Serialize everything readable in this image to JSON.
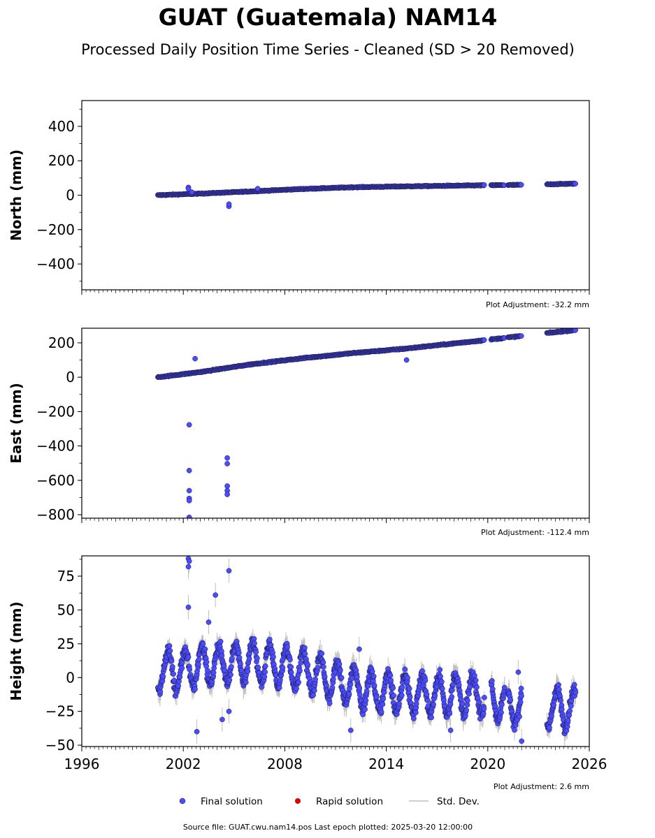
{
  "title": "GUAT (Guatemala) NAM14",
  "subtitle": "Processed Daily Position Time Series - Cleaned (SD > 20 Removed)",
  "footer": "Source file: GUAT.cwu.nam14.pos  Last epoch plotted: 2025-03-20 12:00:00",
  "legend": {
    "final": "Final solution",
    "rapid": "Rapid solution",
    "std": "Std. Dev."
  },
  "colors": {
    "final": "#4b4bff",
    "final_edge": "#1a1a40",
    "rapid": "#e00000",
    "std": "#bfbfbf"
  },
  "chart_data": [
    {
      "type": "scatter",
      "panel": "north",
      "ylabel": "North (mm)",
      "ylim": [
        -550,
        550
      ],
      "yticks": [
        -400,
        -200,
        0,
        200,
        400
      ],
      "ytick_labels": [
        "−400",
        "−200",
        "0",
        "200",
        "400"
      ],
      "xlim": [
        1996,
        2026
      ],
      "adjustment": "Plot Adjustment: -32.2 mm",
      "series": [
        {
          "name": "Final solution",
          "trend": [
            [
              2000.5,
              0
            ],
            [
              2003,
              9
            ],
            [
              2006,
              22
            ],
            [
              2009,
              36
            ],
            [
              2012,
              46
            ],
            [
              2015,
              51
            ],
            [
              2019.5,
              57
            ],
            [
              2022,
              60
            ],
            [
              2025.2,
              67
            ]
          ],
          "segments": [
            [
              2000.5,
              2019.8
            ],
            [
              2020.2,
              2021.0
            ],
            [
              2021.2,
              2022.0
            ],
            [
              2023.5,
              2025.2
            ]
          ],
          "outliers": [
            [
              2002.3,
              45
            ],
            [
              2002.3,
              38
            ],
            [
              2002.5,
              18
            ],
            [
              2004.7,
              -65
            ],
            [
              2004.7,
              -52
            ],
            [
              2006.4,
              38
            ]
          ]
        }
      ]
    },
    {
      "type": "scatter",
      "panel": "east",
      "ylabel": "East (mm)",
      "ylim": [
        -820,
        285
      ],
      "yticks": [
        -800,
        -600,
        -400,
        -200,
        0,
        200
      ],
      "ytick_labels": [
        "−800",
        "−600",
        "−400",
        "−200",
        "0",
        "200"
      ],
      "xlim": [
        1996,
        2026
      ],
      "adjustment": "Plot Adjustment: -112.4 mm",
      "series": [
        {
          "name": "Final solution",
          "trend": [
            [
              2000.5,
              0
            ],
            [
              2003,
              30
            ],
            [
              2006,
              75
            ],
            [
              2009,
              110
            ],
            [
              2012,
              140
            ],
            [
              2015,
              165
            ],
            [
              2019.5,
              212
            ],
            [
              2022,
              240
            ],
            [
              2025.2,
              275
            ]
          ],
          "segments": [
            [
              2000.5,
              2019.8
            ],
            [
              2020.2,
              2021.0
            ],
            [
              2021.2,
              2022.0
            ],
            [
              2023.5,
              2025.2
            ]
          ],
          "outliers": [
            [
              2002.35,
              -277
            ],
            [
              2002.35,
              -543
            ],
            [
              2002.35,
              -660
            ],
            [
              2002.35,
              -705
            ],
            [
              2002.35,
              -718
            ],
            [
              2002.35,
              -815
            ],
            [
              2002.7,
              108
            ],
            [
              2004.6,
              -470
            ],
            [
              2004.6,
              -503
            ],
            [
              2004.6,
              -633
            ],
            [
              2004.6,
              -660
            ],
            [
              2004.6,
              -682
            ],
            [
              2015.2,
              100
            ]
          ]
        }
      ]
    },
    {
      "type": "scatter",
      "panel": "height",
      "ylabel": "Height (mm)",
      "ylim": [
        -51,
        90
      ],
      "yticks": [
        -50,
        -25,
        0,
        25,
        50,
        75
      ],
      "ytick_labels": [
        "−50",
        "−25",
        "0",
        "25",
        "50",
        "75"
      ],
      "xlim": [
        1996,
        2026
      ],
      "xticks": [
        1996,
        2002,
        2008,
        2014,
        2020,
        2026
      ],
      "xtick_labels": [
        "1996",
        "2002",
        "2008",
        "2014",
        "2020",
        "2026"
      ],
      "adjustment": "Plot Adjustment: 2.6 mm",
      "series": [
        {
          "name": "Final solution",
          "trend": [
            [
              2000.5,
              5
            ],
            [
              2003,
              8
            ],
            [
              2006,
              12
            ],
            [
              2009,
              6
            ],
            [
              2011,
              -2
            ],
            [
              2013,
              -10
            ],
            [
              2016,
              -13
            ],
            [
              2019.5,
              -12
            ],
            [
              2022,
              -22
            ],
            [
              2025.2,
              -22
            ]
          ],
          "seasonal_amplitude_mm": 14,
          "segments": [
            [
              2000.5,
              2019.8
            ],
            [
              2020.2,
              2021.0
            ],
            [
              2021.2,
              2022.0
            ],
            [
              2023.5,
              2025.2
            ]
          ],
          "outliers": [
            [
              2002.3,
              88
            ],
            [
              2002.35,
              86
            ],
            [
              2002.3,
              82
            ],
            [
              2002.3,
              52
            ],
            [
              2002.8,
              -40
            ],
            [
              2003.5,
              41
            ],
            [
              2003.9,
              61
            ],
            [
              2004.3,
              -31
            ],
            [
              2004.7,
              79
            ],
            [
              2004.7,
              -25
            ],
            [
              2012.4,
              21
            ],
            [
              2011.9,
              -39
            ],
            [
              2017.8,
              -39
            ],
            [
              2021.8,
              4
            ],
            [
              2022.0,
              -47
            ]
          ]
        }
      ]
    }
  ]
}
